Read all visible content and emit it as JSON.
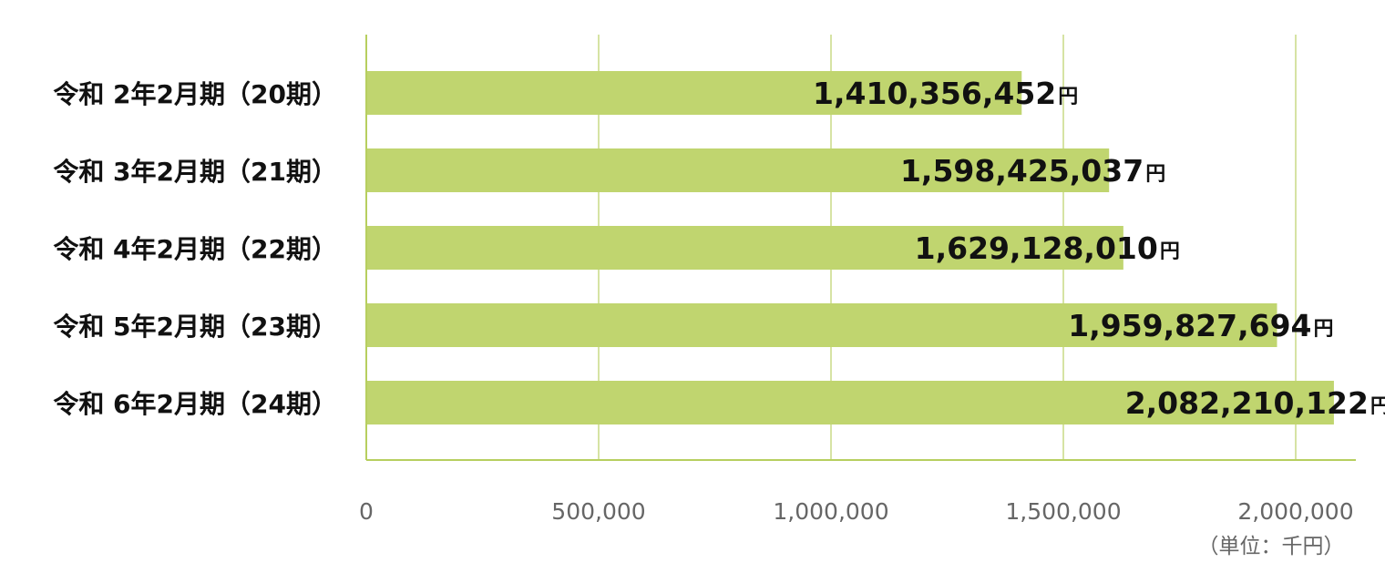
{
  "chart_data": {
    "type": "bar",
    "orientation": "horizontal",
    "categories": [
      "令和 2年2月期（20期）",
      "令和 3年2月期（21期）",
      "令和 4年2月期（22期）",
      "令和 5年2月期（23期）",
      "令和 6年2月期（24期）"
    ],
    "values": [
      1410356,
      1598425,
      1629128,
      1959828,
      2082210
    ],
    "data_labels": [
      {
        "amount": "1,410,356,452",
        "suffix": "円"
      },
      {
        "amount": "1,598,425,037",
        "suffix": "円"
      },
      {
        "amount": "1,629,128,010",
        "suffix": "円"
      },
      {
        "amount": "1,959,827,694",
        "suffix": "円"
      },
      {
        "amount": "2,082,210,122",
        "suffix": "円"
      }
    ],
    "x_ticks": [
      "0",
      "500,000",
      "1,000,000",
      "1,500,000",
      "2,000,000"
    ],
    "x_tick_values": [
      0,
      500000,
      1000000,
      1500000,
      2000000
    ],
    "xlim": [
      0,
      2130000
    ],
    "unit_note": "（単位：千円）",
    "grid": true,
    "legend": "none",
    "colors": {
      "bar": "#c0d56f",
      "grid": "#c9da86",
      "axis": "#b7cf5f",
      "tick_text": "#666666",
      "label_text": "#111111"
    }
  }
}
